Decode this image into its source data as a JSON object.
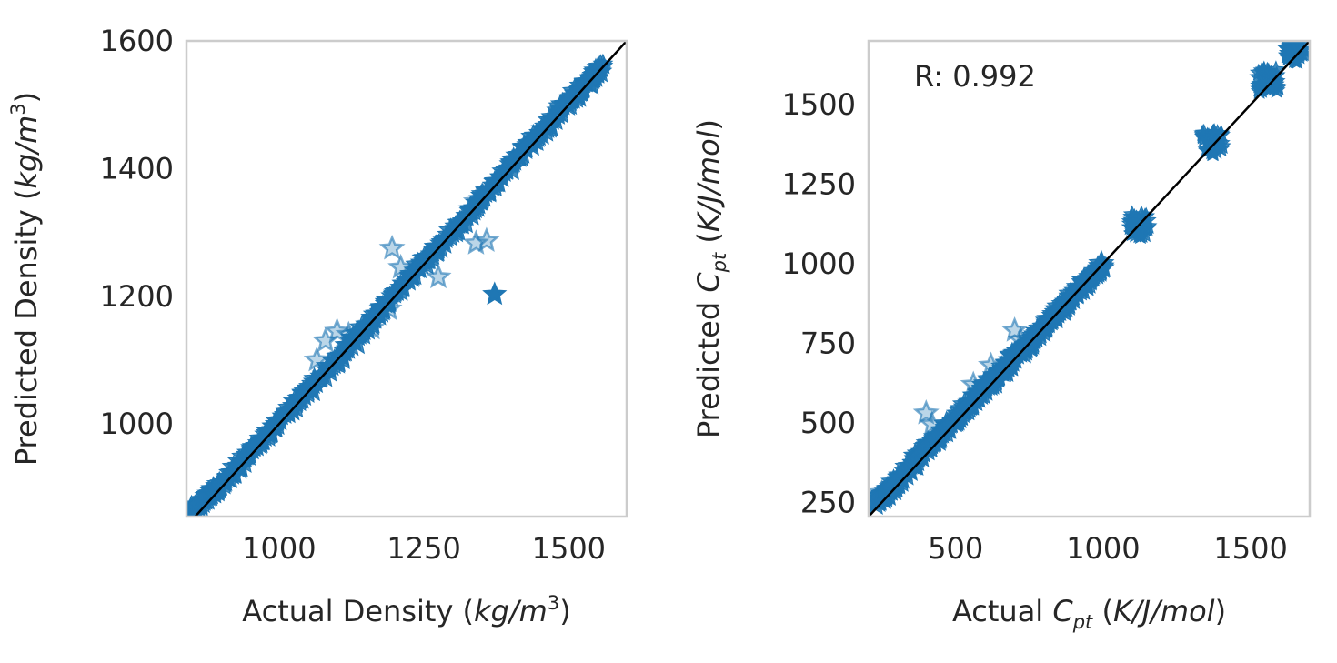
{
  "chart_data": [
    {
      "type": "scatter",
      "marker": "star",
      "color": "#1f77b4",
      "xlabel": "Actual Density (kg/m³)",
      "ylabel": "Predicted Density (kg/m³)",
      "xlabel_parts": {
        "pre": "Actual Density (",
        "italic": "kg/m",
        "sup": "3",
        "post": ")"
      },
      "ylabel_parts": {
        "pre": "Predicted Density (",
        "italic": "kg/m",
        "sup": "3",
        "post": ")"
      },
      "xlim": [
        840,
        1600
      ],
      "ylim": [
        855,
        1600
      ],
      "xticks": [
        1000,
        1250,
        1500
      ],
      "yticks": [
        1000,
        1200,
        1400,
        1600
      ],
      "grid": false,
      "identity_line": true,
      "annotation": "",
      "main_band": [
        [
          850,
          865
        ],
        [
          900,
          905
        ],
        [
          1000,
          1005
        ],
        [
          1100,
          1100
        ],
        [
          1200,
          1205
        ],
        [
          1300,
          1300
        ],
        [
          1400,
          1405
        ],
        [
          1500,
          1505
        ],
        [
          1560,
          1560
        ]
      ],
      "outliers": [
        {
          "x": 1372,
          "y": 1203
        },
        {
          "x": 1340,
          "y": 1283
        },
        {
          "x": 1358,
          "y": 1287
        },
        {
          "x": 1340,
          "y": 1348
        },
        {
          "x": 1195,
          "y": 1275
        },
        {
          "x": 1080,
          "y": 1130
        },
        {
          "x": 1065,
          "y": 1100
        },
        {
          "x": 1100,
          "y": 1145
        },
        {
          "x": 1120,
          "y": 1140
        },
        {
          "x": 1160,
          "y": 1150
        },
        {
          "x": 1210,
          "y": 1245
        },
        {
          "x": 1275,
          "y": 1230
        },
        {
          "x": 1190,
          "y": 1180
        },
        {
          "x": 880,
          "y": 890
        }
      ]
    },
    {
      "type": "scatter",
      "marker": "star",
      "color": "#1f77b4",
      "xlabel": "Actual Cpt (K/J/mol)",
      "ylabel": "Predicted Cpt (K/J/mol)",
      "xlabel_parts": {
        "pre": "Actual ",
        "sym": "C",
        "sub": "pt",
        "mid": " (",
        "italic": "K/J/mol",
        "post": ")"
      },
      "ylabel_parts": {
        "pre": "Predicted ",
        "sym": "C",
        "sub": "pt",
        "mid": " (",
        "italic": "K/J/mol",
        "post": ")"
      },
      "xlim": [
        205,
        1700
      ],
      "ylim": [
        205,
        1700
      ],
      "xticks": [
        500,
        1000,
        1500
      ],
      "yticks": [
        250,
        500,
        750,
        1000,
        1250,
        1500
      ],
      "grid": false,
      "identity_line": true,
      "annotation": "R: 0.992",
      "main_band": [
        [
          230,
          250
        ],
        [
          300,
          310
        ],
        [
          400,
          420
        ],
        [
          500,
          510
        ],
        [
          600,
          610
        ],
        [
          700,
          705
        ],
        [
          800,
          800
        ],
        [
          900,
          900
        ],
        [
          1000,
          1000
        ]
      ],
      "clusters": [
        {
          "x": 1120,
          "y": 1120
        },
        {
          "x": 1370,
          "y": 1380
        },
        {
          "x": 1560,
          "y": 1575
        },
        {
          "x": 1650,
          "y": 1670
        }
      ],
      "outliers": [
        {
          "x": 400,
          "y": 530
        },
        {
          "x": 420,
          "y": 495
        },
        {
          "x": 700,
          "y": 790
        },
        {
          "x": 720,
          "y": 760
        },
        {
          "x": 250,
          "y": 280
        },
        {
          "x": 620,
          "y": 680
        },
        {
          "x": 560,
          "y": 620
        }
      ]
    }
  ]
}
